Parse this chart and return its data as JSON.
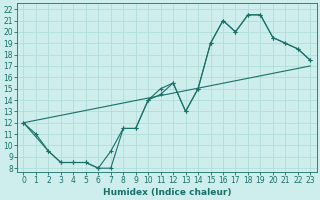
{
  "xlabel": "Humidex (Indice chaleur)",
  "ylabel": "",
  "xlim": [
    -0.5,
    23.5
  ],
  "ylim": [
    8,
    22.5
  ],
  "xticks": [
    0,
    1,
    2,
    3,
    4,
    5,
    6,
    7,
    8,
    9,
    10,
    11,
    12,
    13,
    14,
    15,
    16,
    17,
    18,
    19,
    20,
    21,
    22,
    23
  ],
  "yticks": [
    8,
    9,
    10,
    11,
    12,
    13,
    14,
    15,
    16,
    17,
    18,
    19,
    20,
    21,
    22
  ],
  "bg_color": "#cdeeed",
  "line_color": "#1a7068",
  "grid_color": "#b0ddd8",
  "line1_x": [
    0,
    1,
    2,
    3,
    4,
    5,
    6,
    7,
    8,
    9,
    10,
    11,
    12,
    13,
    14,
    15,
    16,
    17,
    18,
    19,
    20,
    21,
    22,
    23
  ],
  "line1_y": [
    12,
    11,
    9.5,
    8.5,
    8.5,
    8.5,
    8.0,
    9.5,
    11.5,
    11.5,
    14.0,
    15.0,
    15.5,
    13.0,
    15.0,
    19.0,
    21.0,
    20.0,
    21.5,
    21.5,
    19.5,
    19.0,
    18.5,
    17.5
  ],
  "line2_x": [
    0,
    2,
    3,
    4,
    5,
    6,
    7,
    8,
    9,
    10,
    11,
    12,
    13,
    14,
    15,
    16,
    17,
    18,
    19,
    20,
    21,
    22,
    23
  ],
  "line2_y": [
    12,
    9.5,
    8.5,
    8.5,
    8.5,
    8.0,
    8.0,
    11.5,
    11.5,
    14.0,
    14.5,
    15.5,
    13.0,
    15.0,
    19.0,
    21.0,
    20.0,
    21.5,
    21.5,
    19.5,
    19.0,
    18.5,
    17.5
  ],
  "line3_x": [
    0,
    23
  ],
  "line3_y": [
    12,
    17
  ],
  "fontsize_label": 6.5,
  "fontsize_tick": 5.5
}
